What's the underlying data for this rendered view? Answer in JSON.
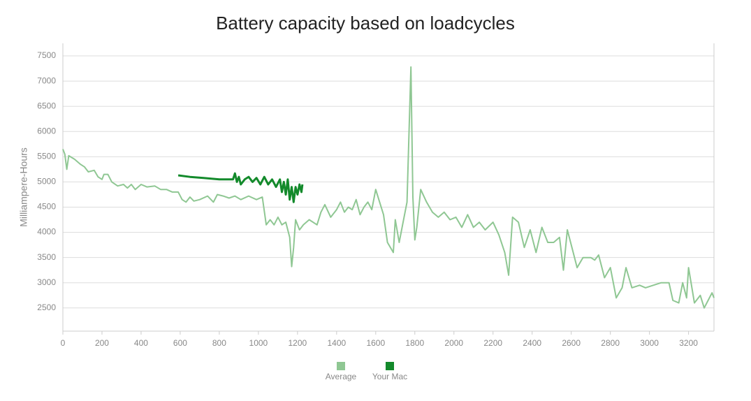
{
  "chart_data": {
    "type": "line",
    "title": "Battery capacity based on loadcycles",
    "y_label": "Milliampere-Hours",
    "xlim": [
      0,
      3330
    ],
    "ylim": [
      2040,
      7750
    ],
    "xticks": [
      0,
      200,
      400,
      600,
      800,
      1000,
      1200,
      1400,
      1600,
      1800,
      2000,
      2200,
      2400,
      2600,
      2800,
      3000,
      3200
    ],
    "yticks": [
      2500,
      3000,
      3500,
      4000,
      4500,
      5000,
      5500,
      6000,
      6500,
      7000,
      7500
    ],
    "grid": true,
    "legend": "bottom",
    "series": [
      {
        "name": "Average",
        "color": "#8fc793",
        "x": [
          0,
          10,
          20,
          30,
          60,
          90,
          110,
          130,
          160,
          180,
          200,
          210,
          230,
          250,
          280,
          310,
          330,
          350,
          370,
          400,
          430,
          470,
          500,
          530,
          560,
          590,
          610,
          630,
          650,
          670,
          700,
          740,
          770,
          790,
          820,
          850,
          880,
          910,
          950,
          990,
          1020,
          1040,
          1060,
          1080,
          1100,
          1120,
          1140,
          1160,
          1170,
          1180,
          1190,
          1210,
          1230,
          1260,
          1300,
          1320,
          1340,
          1370,
          1400,
          1420,
          1440,
          1460,
          1480,
          1500,
          1520,
          1540,
          1560,
          1580,
          1600,
          1620,
          1640,
          1660,
          1690,
          1700,
          1720,
          1740,
          1760,
          1780,
          1790,
          1800,
          1810,
          1830,
          1860,
          1890,
          1920,
          1950,
          1980,
          2010,
          2040,
          2070,
          2100,
          2130,
          2160,
          2200,
          2230,
          2260,
          2280,
          2300,
          2330,
          2360,
          2390,
          2420,
          2450,
          2480,
          2510,
          2540,
          2560,
          2580,
          2610,
          2630,
          2660,
          2700,
          2720,
          2740,
          2770,
          2800,
          2830,
          2860,
          2880,
          2910,
          2950,
          2980,
          3020,
          3060,
          3100,
          3120,
          3150,
          3170,
          3190,
          3200,
          3230,
          3260,
          3280,
          3300,
          3320,
          3330
        ],
        "values": [
          5650,
          5550,
          5250,
          5520,
          5450,
          5350,
          5300,
          5200,
          5230,
          5100,
          5050,
          5150,
          5150,
          5000,
          4920,
          4950,
          4880,
          4950,
          4850,
          4950,
          4900,
          4920,
          4850,
          4850,
          4800,
          4800,
          4650,
          4600,
          4700,
          4620,
          4650,
          4720,
          4600,
          4750,
          4720,
          4680,
          4720,
          4650,
          4720,
          4650,
          4700,
          4150,
          4250,
          4150,
          4300,
          4150,
          4200,
          3900,
          3320,
          3700,
          4250,
          4050,
          4150,
          4250,
          4150,
          4400,
          4550,
          4300,
          4450,
          4600,
          4400,
          4500,
          4450,
          4650,
          4350,
          4500,
          4600,
          4450,
          4850,
          4600,
          4350,
          3800,
          3600,
          4250,
          3800,
          4200,
          4600,
          7280,
          4700,
          3850,
          4100,
          4850,
          4600,
          4400,
          4300,
          4400,
          4250,
          4300,
          4100,
          4350,
          4100,
          4200,
          4050,
          4200,
          3950,
          3600,
          3150,
          4300,
          4200,
          3700,
          4050,
          3600,
          4100,
          3800,
          3800,
          3900,
          3250,
          4050,
          3600,
          3300,
          3500,
          3500,
          3450,
          3550,
          3100,
          3300,
          2700,
          2900,
          3300,
          2900,
          2950,
          2900,
          2950,
          3000,
          3000,
          2650,
          2600,
          3000,
          2700,
          3300,
          2600,
          2750,
          2500,
          2650,
          2800,
          2700
        ]
      },
      {
        "name": "Your Mac",
        "color": "#138a2b",
        "x": [
          590,
          650,
          720,
          800,
          870,
          880,
          890,
          900,
          910,
          930,
          950,
          970,
          990,
          1010,
          1030,
          1050,
          1070,
          1090,
          1110,
          1120,
          1130,
          1140,
          1150,
          1160,
          1170,
          1180,
          1190,
          1200,
          1210,
          1220,
          1225
        ],
        "values": [
          5130,
          5100,
          5080,
          5050,
          5050,
          5170,
          5000,
          5100,
          4950,
          5050,
          5100,
          5000,
          5080,
          4950,
          5100,
          4950,
          5050,
          4900,
          5050,
          4800,
          5000,
          4750,
          5050,
          4650,
          4900,
          4600,
          4900,
          4750,
          4950,
          4800,
          4950
        ]
      }
    ]
  }
}
